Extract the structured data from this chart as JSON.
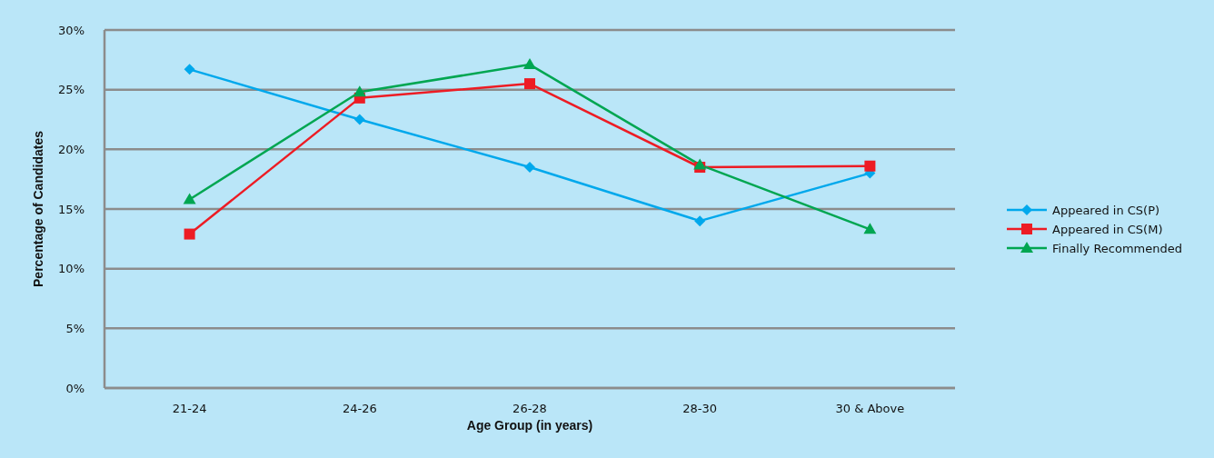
{
  "chart_data": {
    "type": "line",
    "xlabel": "Age Group (in years)",
    "ylabel": "Percentage of Candidates",
    "categories": [
      "21-24",
      "24-26",
      "26-28",
      "28-30",
      "30 & Above"
    ],
    "series": [
      {
        "name": "Appeared in CS(P)",
        "color": "#00a8ec",
        "marker": "diamond",
        "values": [
          26.7,
          22.5,
          18.5,
          14.0,
          18.0
        ]
      },
      {
        "name": "Appeared in CS(M)",
        "color": "#ed1c24",
        "marker": "square",
        "values": [
          12.9,
          24.3,
          25.5,
          18.5,
          18.6
        ]
      },
      {
        "name": "Finally Recommended",
        "color": "#00a651",
        "marker": "triangle",
        "values": [
          15.8,
          24.8,
          27.1,
          18.7,
          13.3
        ]
      }
    ],
    "ylim": [
      0,
      30
    ],
    "yticks": [
      {
        "value": 0,
        "label": "0%"
      },
      {
        "value": 5,
        "label": "5%"
      },
      {
        "value": 10,
        "label": "10%"
      },
      {
        "value": 15,
        "label": "15%"
      },
      {
        "value": 20,
        "label": "20%"
      },
      {
        "value": 25,
        "label": "25%"
      },
      {
        "value": 30,
        "label": "30%"
      }
    ],
    "grid": "y",
    "legend": "right",
    "line_style": "solid"
  }
}
